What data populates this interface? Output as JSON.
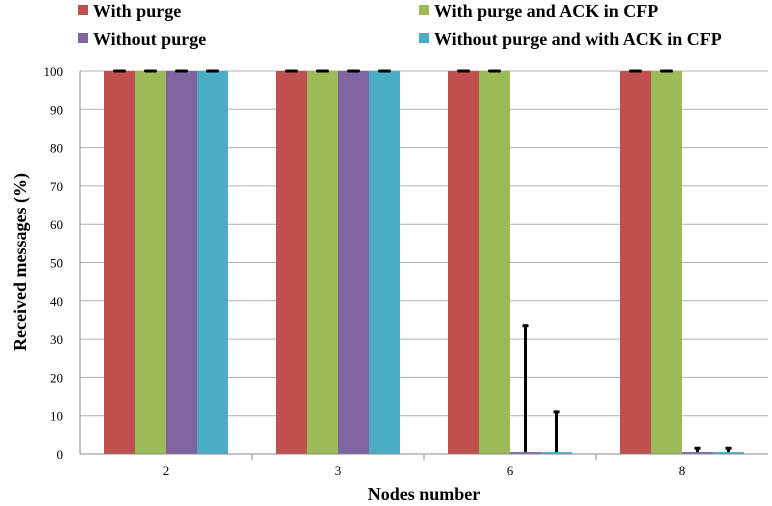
{
  "chart_data": {
    "type": "bar",
    "categories": [
      "2",
      "3",
      "6",
      "8"
    ],
    "xlabel": "Nodes number",
    "ylabel": "Received messages (%)",
    "ylim": [
      0,
      100
    ],
    "yticks": [
      0,
      10,
      20,
      30,
      40,
      50,
      60,
      70,
      80,
      90,
      100
    ],
    "grid": true,
    "legend_position": "top",
    "series": [
      {
        "name": "With purge",
        "color": "#c0504d",
        "values": [
          100,
          100,
          100,
          100
        ],
        "error": [
          0,
          0,
          0,
          0
        ]
      },
      {
        "name": "With purge and ACK in CFP",
        "color": "#9bbb59",
        "values": [
          100,
          100,
          100,
          100
        ],
        "error": [
          0,
          0,
          0,
          0
        ]
      },
      {
        "name": "Without purge",
        "color": "#8064a2",
        "values": [
          100,
          100,
          0.5,
          0.5
        ],
        "error": [
          0,
          0,
          33,
          1
        ]
      },
      {
        "name": "Without purge and with ACK in CFP",
        "color": "#4bacc6",
        "values": [
          100,
          100,
          0.5,
          0.5
        ],
        "error": [
          0,
          0,
          10.5,
          1
        ]
      }
    ]
  }
}
